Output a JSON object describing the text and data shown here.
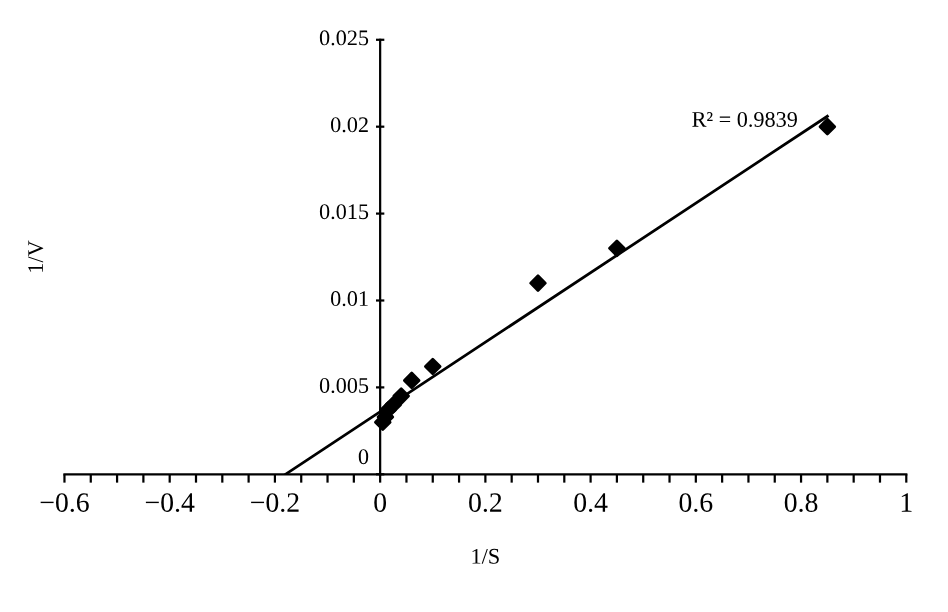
{
  "chart_data": {
    "type": "scatter",
    "xlabel": "1/S",
    "ylabel": "1/V",
    "xlim": [
      -0.6,
      1
    ],
    "ylim": [
      0,
      0.025
    ],
    "xticks": [
      {
        "value": -0.6,
        "label": "−0.6"
      },
      {
        "value": -0.55,
        "label": null
      },
      {
        "value": -0.5,
        "label": null
      },
      {
        "value": -0.45,
        "label": null
      },
      {
        "value": -0.4,
        "label": "−0.4"
      },
      {
        "value": -0.35,
        "label": null
      },
      {
        "value": -0.3,
        "label": null
      },
      {
        "value": -0.25,
        "label": null
      },
      {
        "value": -0.2,
        "label": "−0.2"
      },
      {
        "value": -0.15,
        "label": null
      },
      {
        "value": -0.1,
        "label": null
      },
      {
        "value": -0.05,
        "label": null
      },
      0,
      {
        "value": 0.05,
        "label": null
      },
      {
        "value": 0.1,
        "label": null
      },
      {
        "value": 0.15,
        "label": null
      },
      0.2,
      {
        "value": 0.25,
        "label": null
      },
      {
        "value": 0.3,
        "label": null
      },
      {
        "value": 0.35,
        "label": null
      },
      0.4,
      {
        "value": 0.45,
        "label": null
      },
      {
        "value": 0.5,
        "label": null
      },
      {
        "value": 0.55,
        "label": null
      },
      0.6,
      {
        "value": 0.65,
        "label": null
      },
      {
        "value": 0.7,
        "label": null
      },
      {
        "value": 0.75,
        "label": null
      },
      0.8,
      {
        "value": 0.85,
        "label": null
      },
      {
        "value": 0.9,
        "label": null
      },
      {
        "value": 0.95,
        "label": null
      },
      1
    ],
    "yticks": [
      0,
      0.005,
      0.01,
      0.015,
      0.02,
      0.025
    ],
    "grid": false,
    "legend": false,
    "marker": "diamond",
    "annotations": [
      "R² = 0.9839"
    ],
    "series": [
      {
        "color": "#000000",
        "x": [
          0.005,
          0.01,
          0.015,
          0.025,
          0.04,
          0.06,
          0.1,
          0.3,
          0.45,
          0.85
        ],
        "values": [
          0.003,
          0.0033,
          0.0037,
          0.004,
          0.0045,
          0.0054,
          0.0062,
          0.011,
          0.013,
          0.02
        ]
      },
      {
        "type": "line",
        "color": "#000000",
        "line_style": "solid",
        "marker": "none",
        "x": [
          -0.18,
          0.85
        ],
        "values": [
          0,
          0.0206
        ]
      }
    ]
  }
}
